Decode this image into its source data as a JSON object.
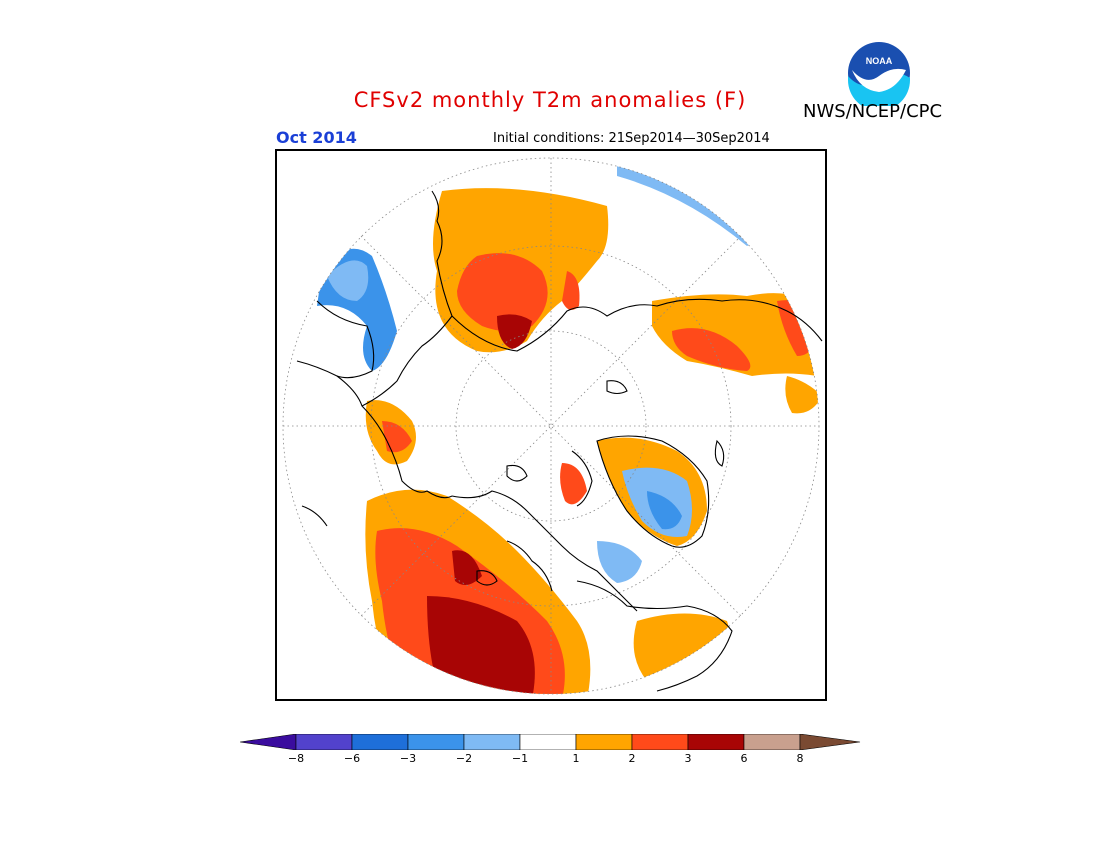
{
  "header": {
    "title": "CFSv2 monthly T2m anomalies (F)",
    "organization": "NWS/NCEP/CPC",
    "month": "Oct 2014",
    "initial_conditions": "Initial conditions: 21Sep2014—30Sep2014",
    "logo_text": "NOAA"
  },
  "colors": {
    "title": "#e00000",
    "month": "#1a3fd6",
    "ocean_fill": "#ffffff",
    "coastline": "#000000"
  },
  "legend": {
    "levels": [
      -8,
      -6,
      -3,
      -2,
      -1,
      1,
      2,
      3,
      6,
      8
    ],
    "labels": [
      "−8",
      "−6",
      "−3",
      "−2",
      "−1",
      "1",
      "2",
      "3",
      "6",
      "8"
    ],
    "colors": [
      "#3a0c9e",
      "#5242cc",
      "#1e6fd9",
      "#3b93ea",
      "#7fbaf4",
      "#ffffff",
      "#ffa500",
      "#ff4a1a",
      "#a80505",
      "#c9a08e",
      "#7a4a32"
    ]
  }
}
